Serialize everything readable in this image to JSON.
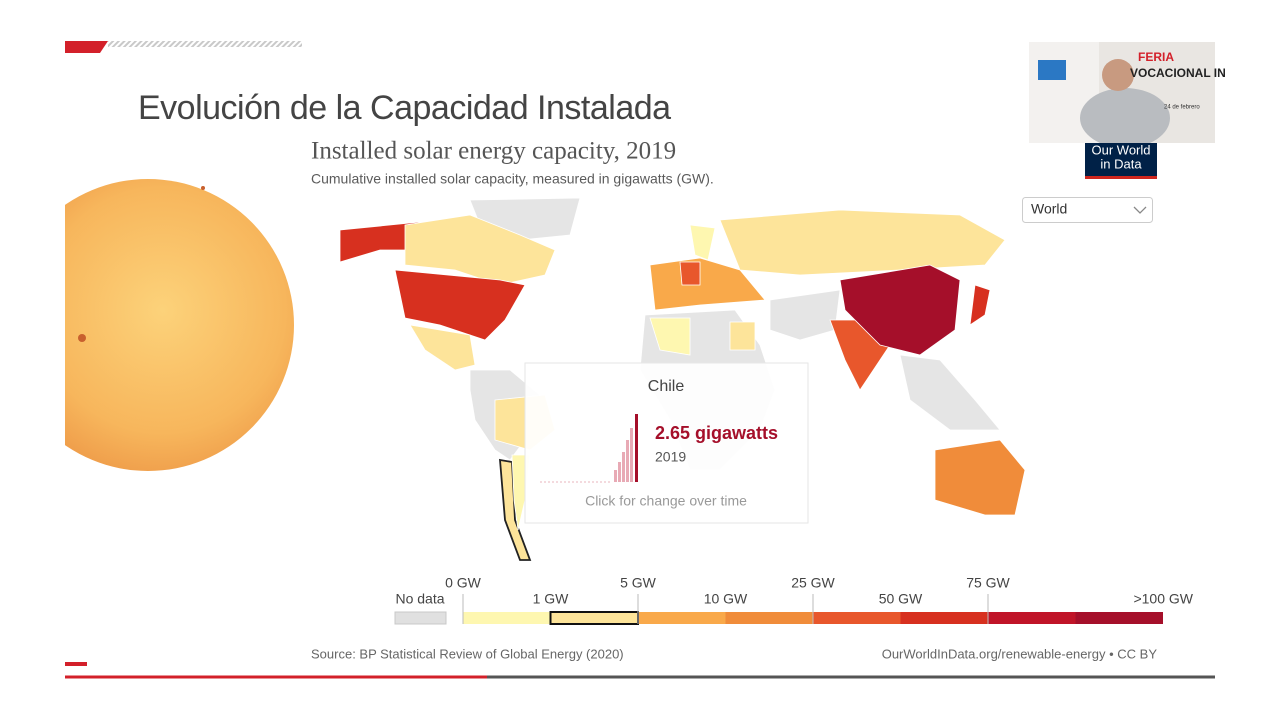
{
  "slide": {
    "title": "Evolución de la  Capacidad Instalada"
  },
  "chart": {
    "title": "Installed solar energy capacity, 2019",
    "subtitle": "Cumulative installed solar capacity, measured in gigawatts (GW).",
    "region_selector": "World",
    "logo": [
      "Our World",
      "in Data"
    ],
    "tooltip": {
      "country": "Chile",
      "value": "2.65 gigawatts",
      "year": "2019",
      "hint": "Click for change over time"
    },
    "legend": {
      "no_data": "No data",
      "top_labels": [
        "0 GW",
        "5 GW",
        "25 GW",
        "75 GW"
      ],
      "bottom_labels": [
        "1 GW",
        "10 GW",
        "50 GW",
        ">100 GW"
      ]
    },
    "source": "Source: BP Statistical Review of Global Energy (2020)",
    "url": "OurWorldInData.org/renewable-energy • CC BY"
  },
  "webcam": {
    "banner": [
      "FERIA",
      "VOCACIONAL IN"
    ],
    "date": "24 de febrero"
  }
}
